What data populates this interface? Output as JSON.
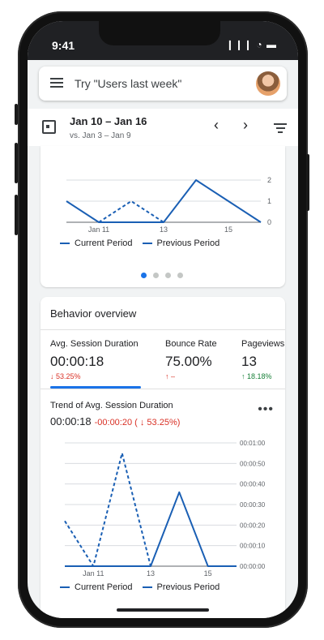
{
  "status": {
    "time": "9:41",
    "icons": "❙❙❙ ◔ ▬"
  },
  "search": {
    "placeholder_text": "Try \"Users last week\""
  },
  "date": {
    "range": "Jan 10 – Jan 16",
    "compare": "vs. Jan 3 – Jan 9",
    "prev": "‹",
    "next": "›"
  },
  "top_chart": {
    "legend_current": "Current Period",
    "legend_previous": "Previous Period",
    "pager_count": 4,
    "pager_active": 1
  },
  "behavior": {
    "title": "Behavior overview",
    "metrics": [
      {
        "label": "Avg. Session Duration",
        "value": "00:00:18",
        "change": "↓ 53.25%"
      },
      {
        "label": "Bounce Rate",
        "value": "75.00%",
        "change": "↑ –"
      },
      {
        "label": "Pageviews",
        "value": "13",
        "change": "↑ 18.18%"
      }
    ],
    "trend_title": "Trend of Avg. Session Duration",
    "trend_value": "00:00:18",
    "trend_change": "-00:00:20 ( ↓ 53.25%)",
    "more": "•••",
    "legend_current": "Current Period",
    "legend_previous": "Previous Period"
  },
  "chart_data": [
    {
      "type": "line",
      "x": [
        "Jan 10",
        "Jan 11",
        "Jan 12",
        "Jan 13",
        "Jan 14",
        "Jan 15",
        "Jan 16"
      ],
      "x_tick_labels": [
        "Jan 11",
        "13",
        "15"
      ],
      "y_tick_labels": [
        "0",
        "1",
        "2"
      ],
      "ylim": [
        0,
        2
      ],
      "series": [
        {
          "name": "Current Period",
          "style": "solid",
          "color": "#1a5fb4",
          "values": [
            1,
            0,
            0,
            0,
            2,
            1,
            0
          ]
        },
        {
          "name": "Previous Period",
          "style": "dashed",
          "color": "#1a5fb4",
          "values": [
            null,
            0,
            1,
            0,
            null,
            null,
            null
          ]
        }
      ]
    },
    {
      "type": "line",
      "x": [
        "Jan 10",
        "Jan 11",
        "Jan 12",
        "Jan 13",
        "Jan 14",
        "Jan 15",
        "Jan 16"
      ],
      "x_tick_labels": [
        "Jan 11",
        "13",
        "15"
      ],
      "y_tick_labels": [
        "00:00:00",
        "00:00:10",
        "00:00:20",
        "00:00:30",
        "00:00:40",
        "00:00:50",
        "00:01:00"
      ],
      "ylim": [
        0,
        60
      ],
      "series": [
        {
          "name": "Current Period",
          "style": "solid",
          "color": "#1a5fb4",
          "values": [
            0,
            0,
            0,
            0,
            36,
            0,
            0
          ]
        },
        {
          "name": "Previous Period",
          "style": "dashed",
          "color": "#1a5fb4",
          "values": [
            22,
            0,
            55,
            0,
            null,
            null,
            null
          ]
        }
      ]
    }
  ]
}
